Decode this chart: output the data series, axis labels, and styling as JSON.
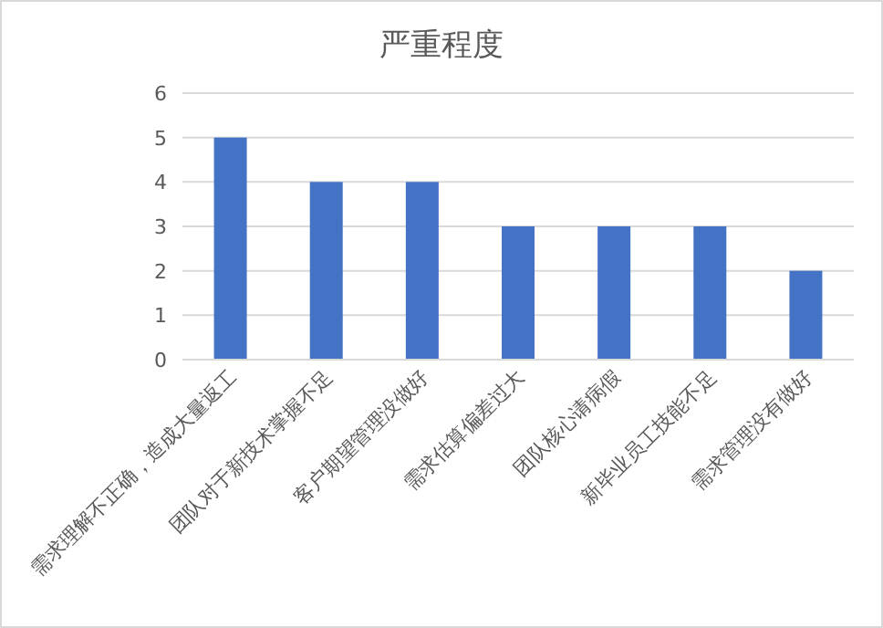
{
  "chart_data": {
    "type": "bar",
    "title": "严重程度",
    "categories": [
      "需求理解不正确，造成大量返工",
      "团队对于新技术掌握不足",
      "客户期望管理没做好",
      "需求估算偏差过大",
      "团队核心请病假",
      "新毕业员工技能不足",
      "需求管理没有做好"
    ],
    "values": [
      5,
      4,
      4,
      3,
      3,
      3,
      2
    ],
    "color": "#4472c4",
    "ylim": [
      0,
      6
    ],
    "yticks": [
      0,
      1,
      2,
      3,
      4,
      5,
      6
    ],
    "grid": "y"
  }
}
